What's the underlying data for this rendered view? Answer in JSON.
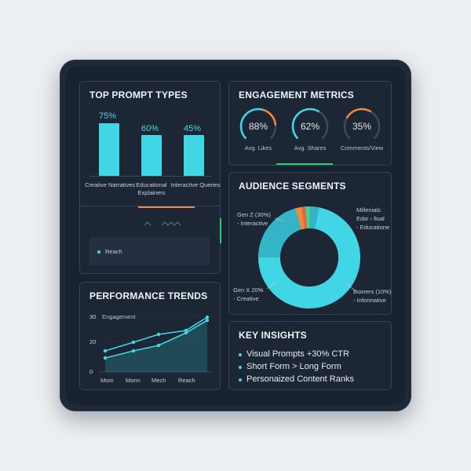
{
  "prompt_types": {
    "title": "TOP PROMPT TYPES",
    "bars": [
      {
        "label_lines": [
          "Creative Narratives"
        ],
        "percent_label": "75%",
        "value": 75
      },
      {
        "label_lines": [
          "Educational",
          "Explainers"
        ],
        "percent_label": "60%",
        "value": 60
      },
      {
        "label_lines": [
          "Interactive Queries"
        ],
        "percent_label": "45%",
        "value": 45
      }
    ],
    "reach_label": "Reach"
  },
  "engagement": {
    "title": "ENGAGEMENT METRICS",
    "gauges": [
      {
        "value_label": "88%",
        "caption": "Avg. Likes",
        "value": 88
      },
      {
        "value_label": "62%",
        "caption": "Avg. Shares",
        "value": 62
      },
      {
        "value_label": "35%",
        "caption": "Comments/View",
        "value": 35
      }
    ]
  },
  "audience": {
    "title": "AUDIENCE SEGMENTS",
    "labels": {
      "genz": [
        "Gen Z (30%)",
        "- Interactive"
      ],
      "millennials": [
        "Millenials",
        "Edsr › fioal",
        "- Educatione"
      ],
      "genx": [
        "Gen X 20%",
        "- Creative"
      ],
      "boomers": [
        "Boorers (10%)",
        "- Informative"
      ]
    }
  },
  "trends": {
    "title": "PERFORMANCE TRENDS",
    "series_label": "Engagement",
    "y_ticks": [
      "30",
      "20",
      "0"
    ],
    "x_ticks": [
      "Mom",
      "Monn",
      "Mech",
      "Reach"
    ]
  },
  "insights": {
    "title": "KEY INSIGHTS",
    "items": [
      "Visual Prompts +30% CTR",
      "Short Form > Long Form",
      "Personaized Content Ranks"
    ]
  },
  "colors": {
    "accent": "#40d6e6",
    "orange": "#ee8a3b",
    "green": "#2ecc71",
    "panel": "#1c2634"
  }
}
